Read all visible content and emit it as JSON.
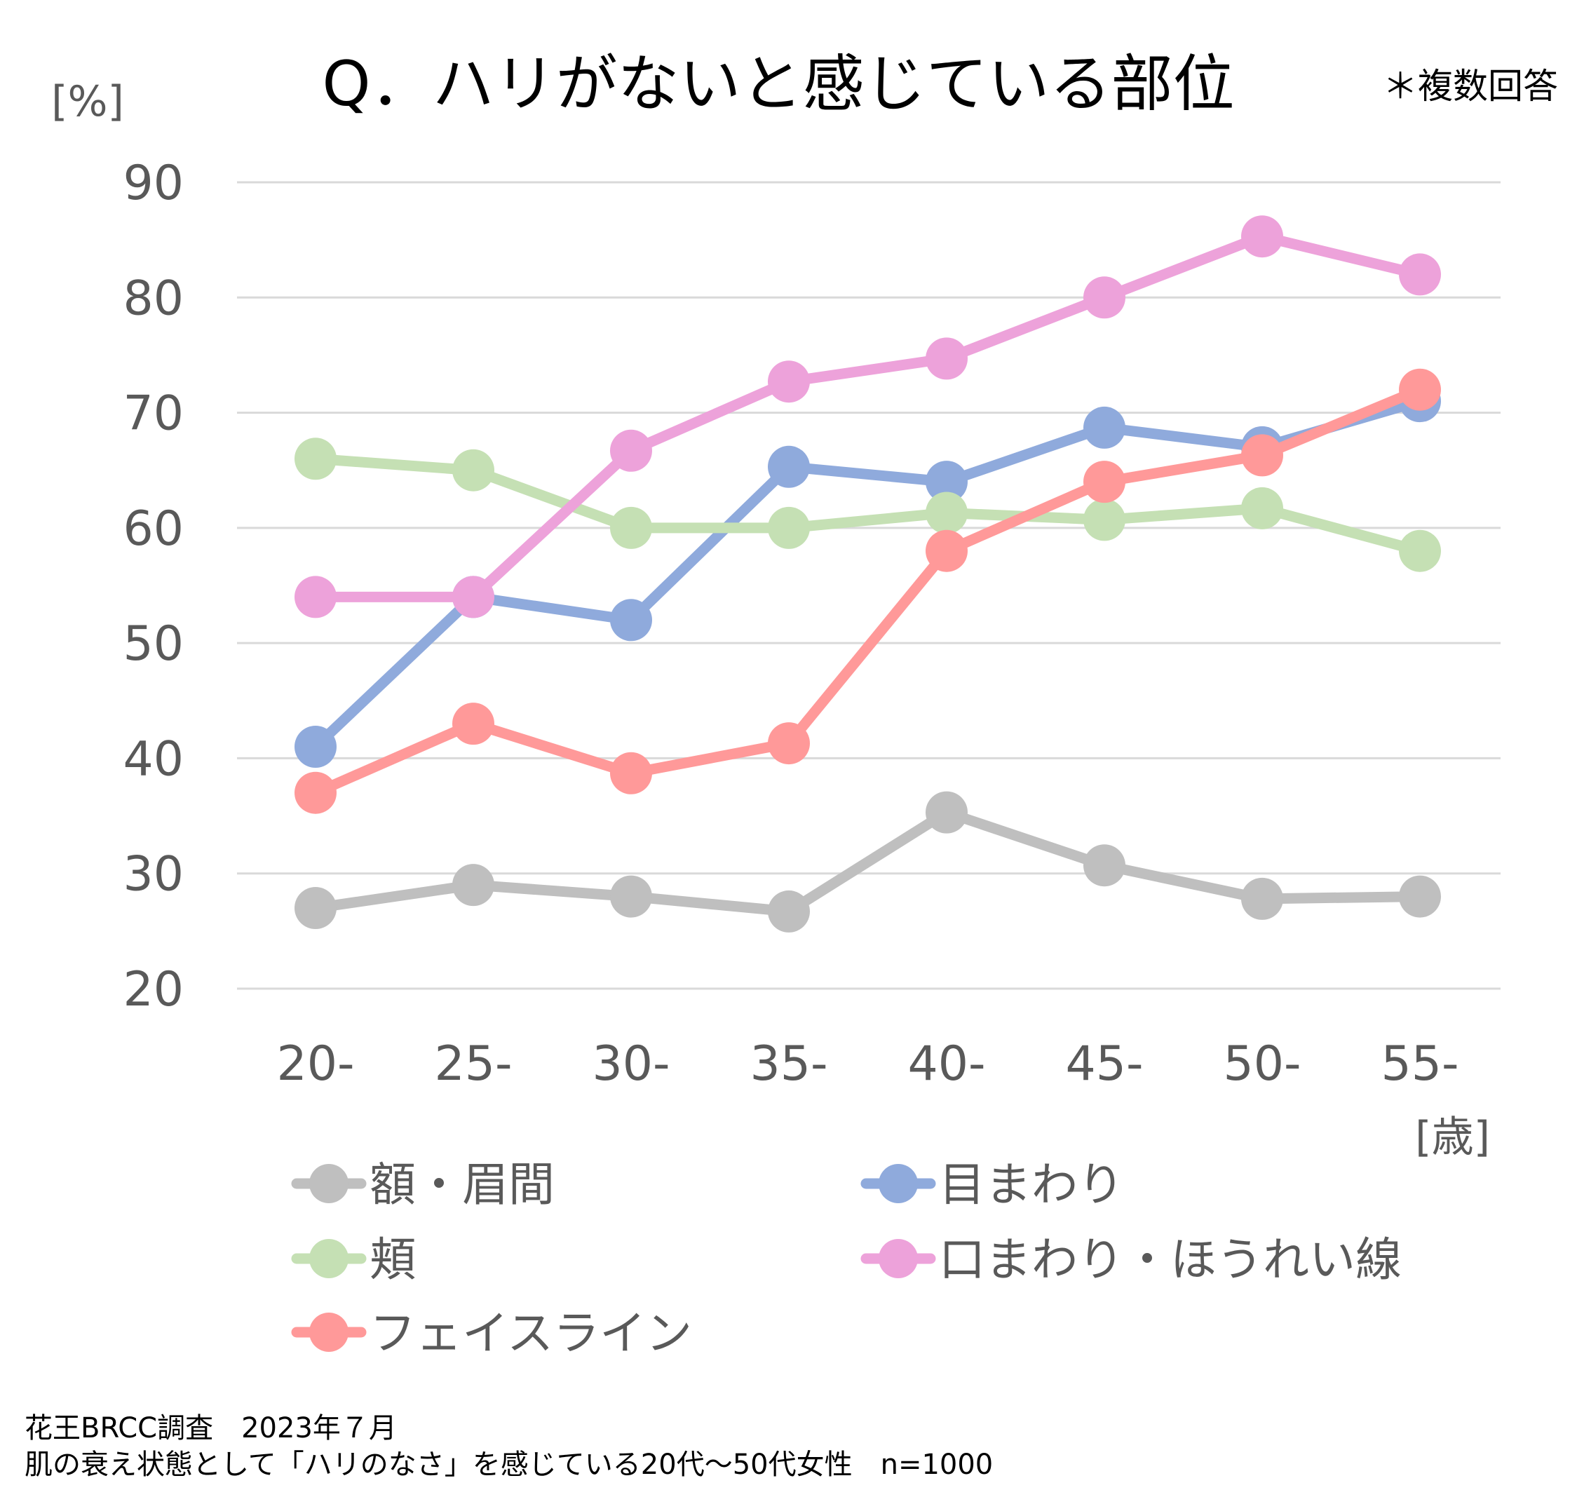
{
  "chart_data": {
    "type": "line",
    "title": "Q．ハリがないと感じている部位",
    "note": "＊複数回答",
    "ylabel": "[%]",
    "xlabel": "[歳]",
    "ylim": [
      20,
      90
    ],
    "yticks": [
      20,
      30,
      40,
      50,
      60,
      70,
      80,
      90
    ],
    "grid": true,
    "categories": [
      "20-",
      "25-",
      "30-",
      "35-",
      "40-",
      "45-",
      "50-",
      "55-"
    ],
    "legend_position": "bottom",
    "series": [
      {
        "name": "額・眉間",
        "color": "#bfbfbf",
        "values": [
          27.0,
          29.0,
          28.0,
          26.7,
          35.3,
          30.7,
          27.8,
          28.0
        ]
      },
      {
        "name": "目まわり",
        "color": "#8faadc",
        "values": [
          41.0,
          54.0,
          52.0,
          65.3,
          64.0,
          68.7,
          67.0,
          71.0
        ]
      },
      {
        "name": "頬",
        "color": "#c5e0b4",
        "values": [
          66.0,
          65.0,
          60.0,
          60.0,
          61.3,
          60.7,
          61.7,
          58.0
        ]
      },
      {
        "name": "口まわり・ほうれい線",
        "color": "#eda2da",
        "values": [
          54.0,
          54.0,
          66.7,
          72.7,
          74.7,
          80.0,
          85.3,
          82.0
        ]
      },
      {
        "name": "フェイスライン",
        "color": "#ff9999",
        "values": [
          37.0,
          43.0,
          38.7,
          41.3,
          58.0,
          64.0,
          66.3,
          72.0
        ]
      }
    ]
  },
  "source": {
    "line1": "花王BRCC調査　2023年７月",
    "line2": "肌の衰え状態として「ハリのなさ」を感じている20代～50代女性　n=1000"
  }
}
